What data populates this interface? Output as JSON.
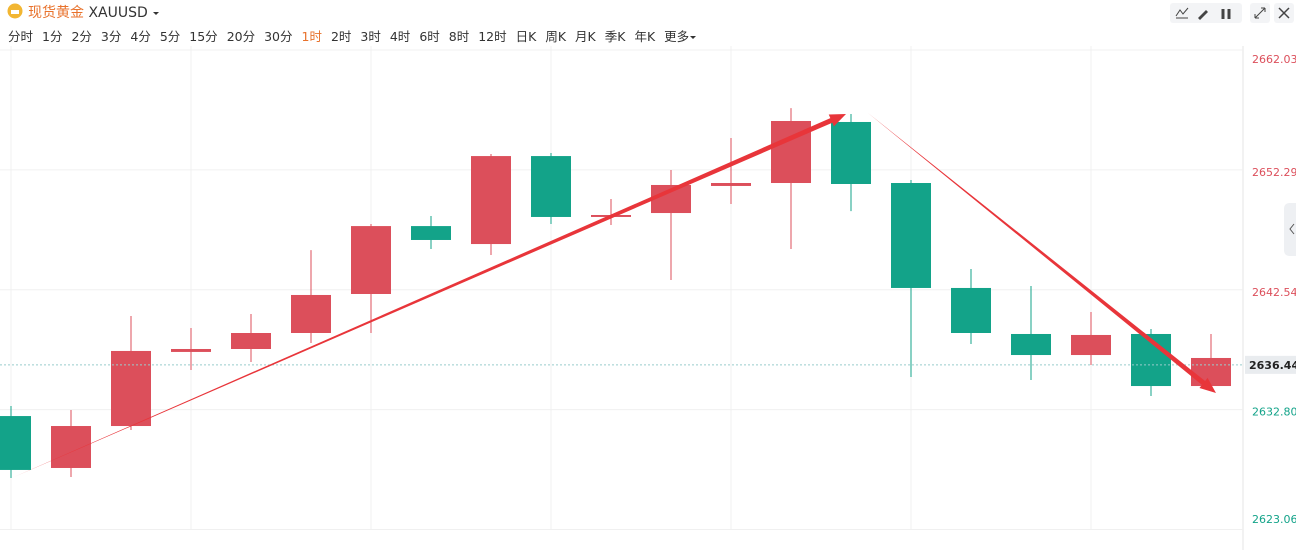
{
  "header": {
    "name": "现货黄金",
    "symbol": "XAUUSD",
    "intervals": [
      "分时",
      "1分",
      "2分",
      "3分",
      "4分",
      "5分",
      "15分",
      "20分",
      "30分",
      "1时",
      "2时",
      "3时",
      "4时",
      "6时",
      "8时",
      "12时",
      "日K",
      "周K",
      "月K",
      "季K",
      "年K",
      "更多"
    ],
    "active": 9
  },
  "chart_data": {
    "type": "candlestick",
    "open": [
      2632.28,
      2628.06,
      2631.47,
      2637.49,
      2637.73,
      2639.03,
      2642.2,
      2647.72,
      2646.26,
      2653.41,
      2648.46,
      2648.78,
      2650.98,
      2651.22,
      2656.18,
      2651.22,
      2642.69,
      2638.95,
      2637.24,
      2638.95,
      2634.72
    ],
    "high": [
      2633.1,
      2632.77,
      2640.41,
      2639.44,
      2640.57,
      2645.77,
      2647.89,
      2648.54,
      2653.58,
      2653.66,
      2649.92,
      2652.28,
      2654.88,
      2657.31,
      2656.83,
      2651.46,
      2644.23,
      2642.85,
      2640.74,
      2639.35,
      2638.95
    ],
    "low": [
      2627.25,
      2627.33,
      2631.15,
      2636.02,
      2636.67,
      2638.22,
      2639.03,
      2645.86,
      2645.37,
      2647.89,
      2647.81,
      2643.34,
      2649.51,
      2645.86,
      2648.94,
      2635.45,
      2638.14,
      2635.21,
      2636.43,
      2633.91,
      2634.72
    ],
    "close": [
      2627.9,
      2631.47,
      2637.57,
      2637.73,
      2639.03,
      2642.12,
      2647.72,
      2646.59,
      2653.41,
      2648.46,
      2648.62,
      2651.06,
      2651.22,
      2656.26,
      2651.14,
      2642.69,
      2639.03,
      2637.24,
      2638.87,
      2634.72,
      2637.0
    ],
    "up_color": "#dc4f5b",
    "down_color": "#13a389",
    "ylim": [
      2623.06,
      2662.03
    ],
    "yticks": [
      2662.03,
      2652.29,
      2642.54,
      {
        "value": 2632.8,
        "label": "2632.80"
      },
      2623.06
    ],
    "last_price": 2636.44,
    "grid": true
  }
}
